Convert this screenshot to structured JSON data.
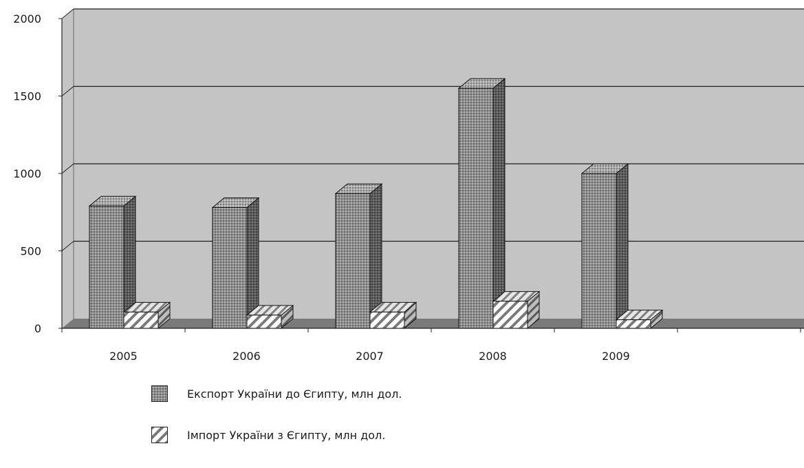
{
  "chart_data": {
    "type": "bar",
    "categories": [
      "2005",
      "2006",
      "2007",
      "2008",
      "2009"
    ],
    "series": [
      {
        "name": "Експорт України до Єгипту, млн дол.",
        "values": [
          790,
          780,
          870,
          1550,
          1000
        ]
      },
      {
        "name": "Імпорт України з Єгипту, млн дол.",
        "values": [
          105,
          85,
          105,
          175,
          55
        ]
      }
    ],
    "ylim": [
      0,
      2000
    ],
    "yticks": [
      "0",
      "500",
      "1000",
      "1500",
      "2000"
    ],
    "grid": true,
    "legend_position": "bottom-left",
    "colors": {
      "wall": "#c4c4c4",
      "floor": "#7a7a7a",
      "export_front": "#8c8c8c",
      "export_side": "#5a5a5a",
      "import_front": "#ffffff",
      "import_hatch": "#6e6e6e"
    }
  }
}
